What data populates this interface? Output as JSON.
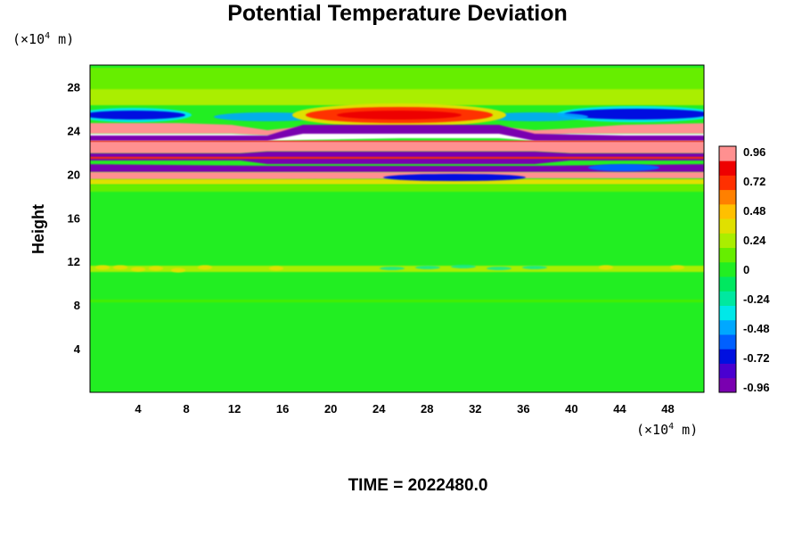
{
  "chart_data": {
    "type": "heatmap",
    "title": "Potential Temperature Deviation",
    "ylabel": "Height",
    "xlabel": "",
    "x_unit": {
      "prefix": "(×10",
      "exp": "4",
      "suffix": " m)"
    },
    "y_unit": {
      "prefix": "(×10",
      "exp": "4",
      "suffix": " m)"
    },
    "x_ticks": [
      4,
      8,
      12,
      16,
      20,
      24,
      28,
      32,
      36,
      40,
      44,
      48
    ],
    "y_ticks": [
      4,
      8,
      12,
      16,
      20,
      24,
      28
    ],
    "xlim": [
      0,
      51
    ],
    "ylim": [
      0,
      30
    ],
    "colorbar": {
      "ticks": [
        "0.96",
        "0.72",
        "0.48",
        "0.24",
        "0",
        "-0.24",
        "-0.48",
        "-0.72",
        "-0.96"
      ],
      "range": [
        -0.96,
        0.96
      ]
    },
    "footer": "TIME = 2022480.0"
  }
}
